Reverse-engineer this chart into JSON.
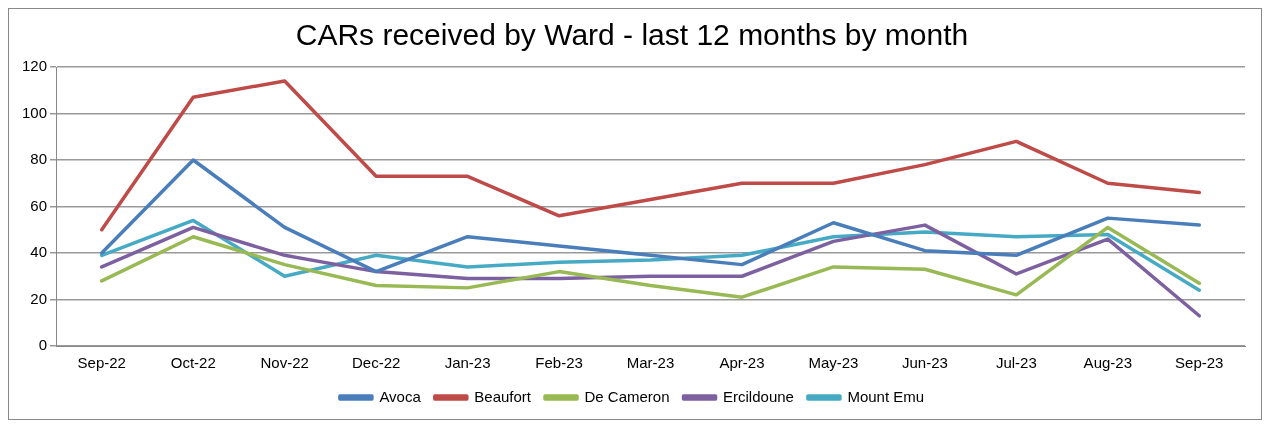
{
  "chart_data": {
    "type": "line",
    "title": "CARs received by Ward - last 12 months by month",
    "categories": [
      "Sep-22",
      "Oct-22",
      "Nov-22",
      "Dec-22",
      "Jan-23",
      "Feb-23",
      "Mar-23",
      "Apr-23",
      "May-23",
      "Jun-23",
      "Jul-23",
      "Aug-23",
      "Sep-23"
    ],
    "series": [
      {
        "name": "Avoca",
        "color": "#4a7ebb",
        "values": [
          40,
          80,
          51,
          32,
          47,
          43,
          39,
          35,
          53,
          41,
          39,
          55,
          52
        ]
      },
      {
        "name": "Beaufort",
        "color": "#be4b48",
        "values": [
          50,
          107,
          114,
          73,
          73,
          56,
          63,
          70,
          70,
          78,
          88,
          70,
          66
        ]
      },
      {
        "name": "De Cameron",
        "color": "#98b954",
        "values": [
          28,
          47,
          35,
          26,
          25,
          32,
          26,
          21,
          34,
          33,
          22,
          51,
          27
        ]
      },
      {
        "name": "Ercildoune",
        "color": "#7d60a0",
        "values": [
          34,
          51,
          39,
          32,
          29,
          29,
          30,
          30,
          45,
          52,
          31,
          46,
          13
        ]
      },
      {
        "name": "Mount Emu",
        "color": "#46aac5",
        "values": [
          39,
          54,
          30,
          39,
          34,
          36,
          37,
          39,
          47,
          49,
          47,
          48,
          24
        ]
      }
    ],
    "ylim": [
      0,
      120
    ],
    "yticks": [
      0,
      20,
      40,
      60,
      80,
      100,
      120
    ],
    "grid": "y",
    "legend": "bottom",
    "marker": "none",
    "line_style": "solid"
  }
}
